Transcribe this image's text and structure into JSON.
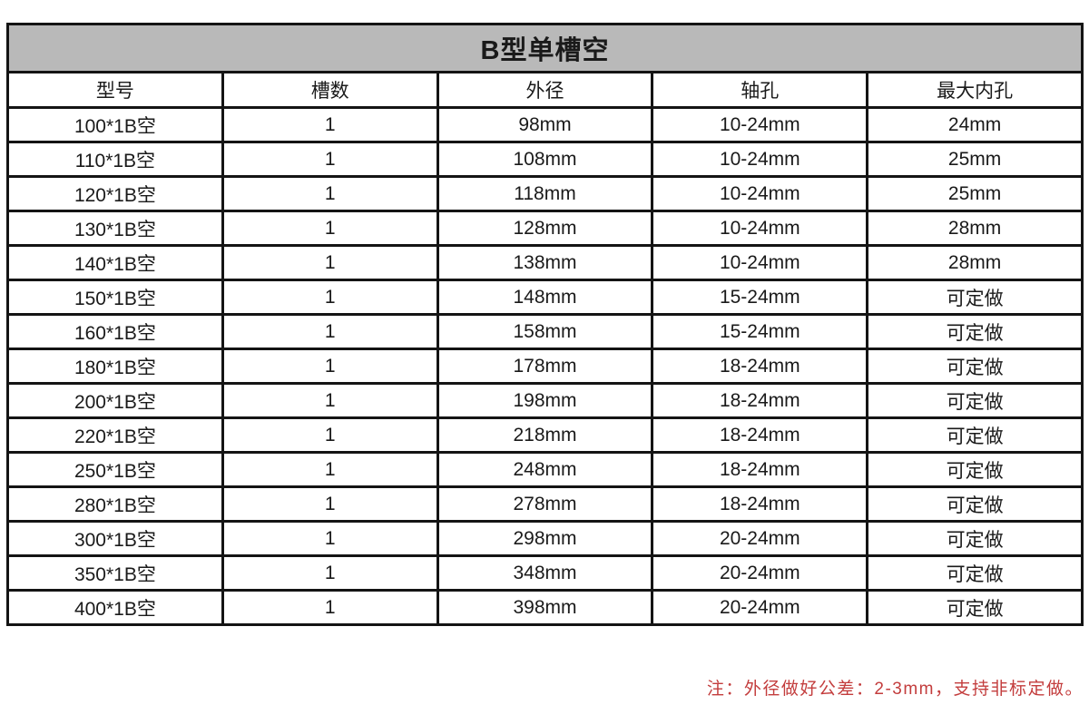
{
  "table": {
    "title": "B型单槽空",
    "columns": [
      "型号",
      "槽数",
      "外径",
      "轴孔",
      "最大内孔"
    ],
    "rows": [
      [
        "100*1B空",
        "1",
        "98mm",
        "10-24mm",
        "24mm"
      ],
      [
        "110*1B空",
        "1",
        "108mm",
        "10-24mm",
        "25mm"
      ],
      [
        "120*1B空",
        "1",
        "118mm",
        "10-24mm",
        "25mm"
      ],
      [
        "130*1B空",
        "1",
        "128mm",
        "10-24mm",
        "28mm"
      ],
      [
        "140*1B空",
        "1",
        "138mm",
        "10-24mm",
        "28mm"
      ],
      [
        "150*1B空",
        "1",
        "148mm",
        "15-24mm",
        "可定做"
      ],
      [
        "160*1B空",
        "1",
        "158mm",
        "15-24mm",
        "可定做"
      ],
      [
        "180*1B空",
        "1",
        "178mm",
        "18-24mm",
        "可定做"
      ],
      [
        "200*1B空",
        "1",
        "198mm",
        "18-24mm",
        "可定做"
      ],
      [
        "220*1B空",
        "1",
        "218mm",
        "18-24mm",
        "可定做"
      ],
      [
        "250*1B空",
        "1",
        "248mm",
        "18-24mm",
        "可定做"
      ],
      [
        "280*1B空",
        "1",
        "278mm",
        "18-24mm",
        "可定做"
      ],
      [
        "300*1B空",
        "1",
        "298mm",
        "20-24mm",
        "可定做"
      ],
      [
        "350*1B空",
        "1",
        "348mm",
        "20-24mm",
        "可定做"
      ],
      [
        "400*1B空",
        "1",
        "398mm",
        "20-24mm",
        "可定做"
      ]
    ],
    "footer_note": "注：外径做好公差：2-3mm，支持非标定做。"
  },
  "colors": {
    "title_bg": "#b9b9b9",
    "border_color": "#141414",
    "note_color": "#c33d3d"
  }
}
